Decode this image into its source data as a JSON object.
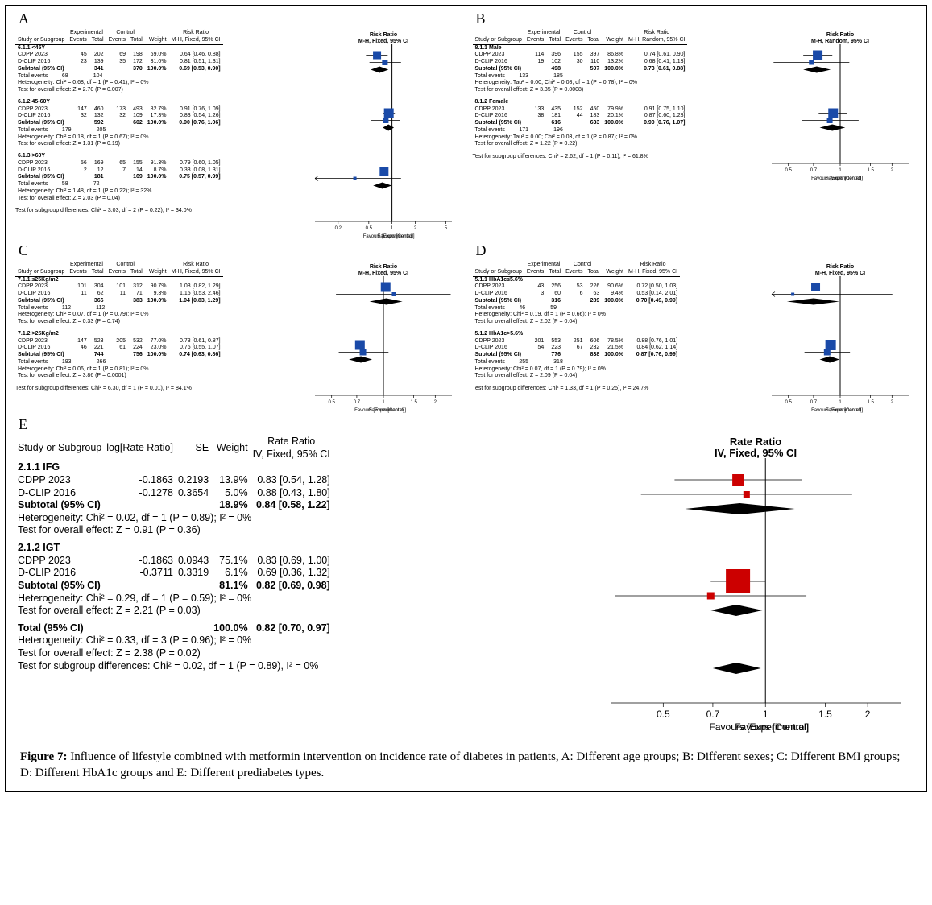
{
  "figure_caption_label": "Figure 7:",
  "figure_caption_text": " Influence of lifestyle combined with metformin intervention on incidence rate of diabetes in patients, A: Different age groups; B: Different sexes; C: Different BMI groups; D: Different HbA1c groups and E: Different prediabetes types.",
  "panel_labels": {
    "A": "A",
    "B": "B",
    "C": "C",
    "D": "D",
    "E": "E"
  },
  "col_hdr": {
    "study": "Study or Subgroup",
    "exp": "Experimental",
    "ctrl": "Control",
    "events": "Events",
    "total": "Total",
    "weight": "Weight",
    "rr_fixed": "Risk Ratio\nM-H, Fixed, 95% CI",
    "rr_random": "Risk Ratio\nM-H, Random, 95% CI",
    "rate_ratio": "Rate Ratio\nIV, Fixed, 95% CI",
    "log_rate": "log[Rate Ratio]",
    "se": "SE",
    "plot_rr": "Risk Ratio",
    "plot_rate": "Rate Ratio",
    "plot_sub_fixed": "M-H, Fixed, 95% CI",
    "plot_sub_random": "M-H, Random, 95% CI",
    "plot_sub_iv": "IV, Fixed, 95% CI",
    "fav_exp": "Favours [Experimental]",
    "fav_ctrl": "Favours [Control]",
    "subtotal": "Subtotal (95% CI)",
    "total_ci": "Total (95% CI)",
    "total_events": "Total events"
  },
  "axis_ticks_02_5": [
    "0.2",
    "0.5",
    "1",
    "2",
    "5"
  ],
  "axis_ticks_05_2": [
    "0.5",
    "0.7",
    "1",
    "1.5",
    "2"
  ],
  "marker_color_small": "#1a4aa8",
  "marker_color_big": "#cc0000",
  "diamond_color": "#000000",
  "A": {
    "effect_label": "M-H, Fixed, 95% CI",
    "subgroups": [
      {
        "name": "6.1.1 <45Y",
        "rows": [
          {
            "study": "CDPP 2023",
            "ee": 45,
            "et": 202,
            "ce": 69,
            "ct": 198,
            "w": "69.0%",
            "rr": "0.64 [0.46, 0.88]",
            "pt": 0.64,
            "lo": 0.46,
            "hi": 0.88,
            "sz": 10
          },
          {
            "study": "D-CLIP 2016",
            "ee": 23,
            "et": 139,
            "ce": 35,
            "ct": 172,
            "w": "31.0%",
            "rr": "0.81 [0.51, 1.31]",
            "pt": 0.81,
            "lo": 0.51,
            "hi": 1.31,
            "sz": 7
          }
        ],
        "sub_et": 341,
        "sub_ct": 370,
        "sub_w": "100.0%",
        "sub_rr": "0.69 [0.53, 0.90]",
        "sub_pt": 0.69,
        "sub_lo": 0.53,
        "sub_hi": 0.9,
        "te_e": 68,
        "te_c": 104,
        "het": "Heterogeneity: Chi² = 0.68, df = 1 (P = 0.41); I² = 0%",
        "eff": "Test for overall effect: Z = 2.70 (P = 0.007)"
      },
      {
        "name": "6.1.2 45-60Y",
        "rows": [
          {
            "study": "CDPP 2023",
            "ee": 147,
            "et": 460,
            "ce": 173,
            "ct": 493,
            "w": "82.7%",
            "rr": "0.91 [0.76, 1.09]",
            "pt": 0.91,
            "lo": 0.76,
            "hi": 1.09,
            "sz": 12
          },
          {
            "study": "D-CLIP 2016",
            "ee": 32,
            "et": 132,
            "ce": 32,
            "ct": 109,
            "w": "17.3%",
            "rr": "0.83 [0.54, 1.26]",
            "pt": 0.83,
            "lo": 0.54,
            "hi": 1.26,
            "sz": 7
          }
        ],
        "sub_et": 592,
        "sub_ct": 602,
        "sub_w": "100.0%",
        "sub_rr": "0.90 [0.76, 1.06]",
        "sub_pt": 0.9,
        "sub_lo": 0.76,
        "sub_hi": 1.06,
        "te_e": 179,
        "te_c": 205,
        "het": "Heterogeneity: Chi² = 0.18, df = 1 (P = 0.67); I² = 0%",
        "eff": "Test for overall effect: Z = 1.31 (P = 0.19)"
      },
      {
        "name": "6.1.3 >60Y",
        "rows": [
          {
            "study": "CDPP 2023",
            "ee": 56,
            "et": 169,
            "ce": 65,
            "ct": 155,
            "w": "91.3%",
            "rr": "0.79 [0.60, 1.05]",
            "pt": 0.79,
            "lo": 0.6,
            "hi": 1.05,
            "sz": 11
          },
          {
            "study": "D-CLIP 2016",
            "ee": 2,
            "et": 12,
            "ce": 7,
            "ct": 14,
            "w": "8.7%",
            "rr": "0.33 [0.08, 1.31]",
            "pt": 0.33,
            "lo": 0.08,
            "hi": 1.31,
            "sz": 4
          }
        ],
        "sub_et": 181,
        "sub_ct": 169,
        "sub_w": "100.0%",
        "sub_rr": "0.75 [0.57, 0.99]",
        "sub_pt": 0.75,
        "sub_lo": 0.57,
        "sub_hi": 0.99,
        "te_e": 58,
        "te_c": 72,
        "het": "Heterogeneity: Chi² = 1.48, df = 1 (P = 0.22); I² = 32%",
        "eff": "Test for overall effect: Z = 2.03 (P = 0.04)"
      }
    ],
    "subdiff": "Test for subgroup differences: Chi² = 3.03, df = 2 (P = 0.22), I² = 34.0%",
    "ticks": [
      "0.2",
      "0.5",
      "1",
      "2",
      "5"
    ],
    "xmin": 0.1,
    "xmax": 6
  },
  "B": {
    "effect_label": "M-H, Random, 95% CI",
    "subgroups": [
      {
        "name": "8.1.1 Male",
        "rows": [
          {
            "study": "CDPP 2023",
            "ee": 114,
            "et": 396,
            "ce": 155,
            "ct": 397,
            "w": "86.8%",
            "rr": "0.74 [0.61, 0.90]",
            "pt": 0.74,
            "lo": 0.61,
            "hi": 0.9,
            "sz": 12
          },
          {
            "study": "D-CLIP 2016",
            "ee": 19,
            "et": 102,
            "ce": 30,
            "ct": 110,
            "w": "13.2%",
            "rr": "0.68 [0.41, 1.13]",
            "pt": 0.68,
            "lo": 0.41,
            "hi": 1.13,
            "sz": 6
          }
        ],
        "sub_et": 498,
        "sub_ct": 507,
        "sub_w": "100.0%",
        "sub_rr": "0.73 [0.61, 0.88]",
        "sub_pt": 0.73,
        "sub_lo": 0.61,
        "sub_hi": 0.88,
        "te_e": 133,
        "te_c": 185,
        "het": "Heterogeneity: Tau² = 0.00; Chi² = 0.08, df = 1 (P = 0.78); I² = 0%",
        "eff": "Test for overall effect: Z = 3.35 (P = 0.0008)"
      },
      {
        "name": "8.1.2 Female",
        "rows": [
          {
            "study": "CDPP 2023",
            "ee": 133,
            "et": 435,
            "ce": 152,
            "ct": 450,
            "w": "79.9%",
            "rr": "0.91 [0.75, 1.10]",
            "pt": 0.91,
            "lo": 0.75,
            "hi": 1.1,
            "sz": 12
          },
          {
            "study": "D-CLIP 2016",
            "ee": 38,
            "et": 181,
            "ce": 44,
            "ct": 183,
            "w": "20.1%",
            "rr": "0.87 [0.60, 1.28]",
            "pt": 0.87,
            "lo": 0.6,
            "hi": 1.28,
            "sz": 7
          }
        ],
        "sub_et": 616,
        "sub_ct": 633,
        "sub_w": "100.0%",
        "sub_rr": "0.90 [0.76, 1.07]",
        "sub_pt": 0.9,
        "sub_lo": 0.76,
        "sub_hi": 1.07,
        "te_e": 171,
        "te_c": 196,
        "het": "Heterogeneity: Tau² = 0.00; Chi² = 0.03, df = 1 (P = 0.87); I² = 0%",
        "eff": "Test for overall effect: Z = 1.22 (P = 0.22)"
      }
    ],
    "subdiff": "Test for subgroup differences: Chi² = 2.62, df = 1 (P = 0.11), I² = 61.8%",
    "ticks": [
      "0.5",
      "0.7",
      "1",
      "1.5",
      "2"
    ],
    "xmin": 0.4,
    "xmax": 2.5
  },
  "C": {
    "effect_label": "M-H, Fixed, 95% CI",
    "subgroups": [
      {
        "name": "7.1.1 ≤25Kg/m2",
        "rows": [
          {
            "study": "CDPP 2023",
            "ee": 101,
            "et": 304,
            "ce": 101,
            "ct": 312,
            "w": "90.7%",
            "rr": "1.03 [0.82, 1.29]",
            "pt": 1.03,
            "lo": 0.82,
            "hi": 1.29,
            "sz": 12
          },
          {
            "study": "D-CLIP 2016",
            "ee": 11,
            "et": 62,
            "ce": 11,
            "ct": 71,
            "w": "9.3%",
            "rr": "1.15 [0.53, 2.46]",
            "pt": 1.15,
            "lo": 0.53,
            "hi": 2.46,
            "sz": 5
          }
        ],
        "sub_et": 366,
        "sub_ct": 383,
        "sub_w": "100.0%",
        "sub_rr": "1.04 [0.83, 1.29]",
        "sub_pt": 1.04,
        "sub_lo": 0.83,
        "sub_hi": 1.29,
        "te_e": 112,
        "te_c": 112,
        "het": "Heterogeneity: Chi² = 0.07, df = 1 (P = 0.79); I² = 0%",
        "eff": "Test for overall effect: Z = 0.33 (P = 0.74)"
      },
      {
        "name": "7.1.2 >25Kg/m2",
        "rows": [
          {
            "study": "CDPP 2023",
            "ee": 147,
            "et": 523,
            "ce": 205,
            "ct": 532,
            "w": "77.0%",
            "rr": "0.73 [0.61, 0.87]",
            "pt": 0.73,
            "lo": 0.61,
            "hi": 0.87,
            "sz": 12
          },
          {
            "study": "D-CLIP 2016",
            "ee": 46,
            "et": 221,
            "ce": 61,
            "ct": 224,
            "w": "23.0%",
            "rr": "0.76 [0.55, 1.07]",
            "pt": 0.76,
            "lo": 0.55,
            "hi": 1.07,
            "sz": 8
          }
        ],
        "sub_et": 744,
        "sub_ct": 756,
        "sub_w": "100.0%",
        "sub_rr": "0.74 [0.63, 0.86]",
        "sub_pt": 0.74,
        "sub_lo": 0.63,
        "sub_hi": 0.86,
        "te_e": 193,
        "te_c": 266,
        "het": "Heterogeneity: Chi² = 0.06, df = 1 (P = 0.81); I² = 0%",
        "eff": "Test for overall effect: Z = 3.86 (P = 0.0001)"
      }
    ],
    "subdiff": "Test for subgroup differences: Chi² = 6.30, df = 1 (P = 0.01), I² = 84.1%",
    "ticks": [
      "0.5",
      "0.7",
      "1",
      "1.5",
      "2"
    ],
    "xmin": 0.4,
    "xmax": 2.5
  },
  "D": {
    "effect_label": "M-H, Fixed, 95% CI",
    "subgroups": [
      {
        "name": "5.1.1 HbA1c≤5.6%",
        "rows": [
          {
            "study": "CDPP 2023",
            "ee": 43,
            "et": 256,
            "ce": 53,
            "ct": 226,
            "w": "90.6%",
            "rr": "0.72 [0.50, 1.03]",
            "pt": 0.72,
            "lo": 0.5,
            "hi": 1.03,
            "sz": 11
          },
          {
            "study": "D-CLIP 2016",
            "ee": 3,
            "et": 60,
            "ce": 6,
            "ct": 63,
            "w": "9.4%",
            "rr": "0.53 [0.14, 2.01]",
            "pt": 0.53,
            "lo": 0.14,
            "hi": 2.01,
            "sz": 4
          }
        ],
        "sub_et": 316,
        "sub_ct": 289,
        "sub_w": "100.0%",
        "sub_rr": "0.70 [0.49, 0.99]",
        "sub_pt": 0.7,
        "sub_lo": 0.49,
        "sub_hi": 0.99,
        "te_e": 46,
        "te_c": 59,
        "het": "Heterogeneity: Chi² = 0.19, df = 1 (P = 0.66); I² = 0%",
        "eff": "Test for overall effect: Z = 2.02 (P = 0.04)"
      },
      {
        "name": "5.1.2 HbA1c>5.6%",
        "rows": [
          {
            "study": "CDPP 2023",
            "ee": 201,
            "et": 553,
            "ce": 251,
            "ct": 606,
            "w": "78.5%",
            "rr": "0.88 [0.76, 1.01]",
            "pt": 0.88,
            "lo": 0.76,
            "hi": 1.01,
            "sz": 13
          },
          {
            "study": "D-CLIP 2016",
            "ee": 54,
            "et": 223,
            "ce": 67,
            "ct": 232,
            "w": "21.5%",
            "rr": "0.84 [0.62, 1.14]",
            "pt": 0.84,
            "lo": 0.62,
            "hi": 1.14,
            "sz": 8
          }
        ],
        "sub_et": 776,
        "sub_ct": 838,
        "sub_w": "100.0%",
        "sub_rr": "0.87 [0.76, 0.99]",
        "sub_pt": 0.87,
        "sub_lo": 0.76,
        "sub_hi": 0.99,
        "te_e": 255,
        "te_c": 318,
        "het": "Heterogeneity: Chi² = 0.07, df = 1 (P = 0.79); I² = 0%",
        "eff": "Test for overall effect: Z = 2.09 (P = 0.04)"
      }
    ],
    "subdiff": "Test for subgroup differences: Chi² = 1.33, df = 1 (P = 0.25), I² = 24.7%",
    "ticks": [
      "0.5",
      "0.7",
      "1",
      "1.5",
      "2"
    ],
    "xmin": 0.4,
    "xmax": 2.5
  },
  "E": {
    "effect_label": "IV, Fixed, 95% CI",
    "subgroups": [
      {
        "name": "2.1.1 IFG",
        "rows": [
          {
            "study": "CDPP 2023",
            "lr": "-0.1863",
            "se": "0.2193",
            "w": "13.9%",
            "rr": "0.83 [0.54, 1.28]",
            "pt": 0.83,
            "lo": 0.54,
            "hi": 1.28,
            "sz": 14
          },
          {
            "study": "D-CLIP 2016",
            "lr": "-0.1278",
            "se": "0.3654",
            "w": "5.0%",
            "rr": "0.88 [0.43, 1.80]",
            "pt": 0.88,
            "lo": 0.43,
            "hi": 1.8,
            "sz": 8
          }
        ],
        "sub_w": "18.9%",
        "sub_rr": "0.84 [0.58, 1.22]",
        "sub_pt": 0.84,
        "sub_lo": 0.58,
        "sub_hi": 1.22,
        "het": "Heterogeneity: Chi² = 0.02, df = 1 (P = 0.89); I² = 0%",
        "eff": "Test for overall effect: Z = 0.91 (P = 0.36)"
      },
      {
        "name": "2.1.2 IGT",
        "rows": [
          {
            "study": "CDPP 2023",
            "lr": "-0.1863",
            "se": "0.0943",
            "w": "75.1%",
            "rr": "0.83 [0.69, 1.00]",
            "pt": 0.83,
            "lo": 0.69,
            "hi": 1.0,
            "sz": 30
          },
          {
            "study": "D-CLIP 2016",
            "lr": "-0.3711",
            "se": "0.3319",
            "w": "6.1%",
            "rr": "0.69 [0.36, 1.32]",
            "pt": 0.69,
            "lo": 0.36,
            "hi": 1.32,
            "sz": 9
          }
        ],
        "sub_w": "81.1%",
        "sub_rr": "0.82 [0.69, 0.98]",
        "sub_pt": 0.82,
        "sub_lo": 0.69,
        "sub_hi": 0.98,
        "het": "Heterogeneity: Chi² = 0.29, df = 1 (P = 0.59); I² = 0%",
        "eff": "Test for overall effect: Z = 2.21 (P = 0.03)"
      }
    ],
    "total_w": "100.0%",
    "total_rr": "0.82 [0.70, 0.97]",
    "total_pt": 0.82,
    "total_lo": 0.7,
    "total_hi": 0.97,
    "tot_het": "Heterogeneity: Chi² = 0.33, df = 3 (P = 0.96); I² = 0%",
    "tot_eff": "Test for overall effect: Z = 2.38 (P = 0.02)",
    "subdiff": "Test for subgroup differences: Chi² = 0.02, df = 1 (P = 0.89), I² = 0%",
    "ticks": [
      "0.5",
      "0.7",
      "1",
      "1.5",
      "2"
    ],
    "xmin": 0.35,
    "xmax": 2.5
  }
}
